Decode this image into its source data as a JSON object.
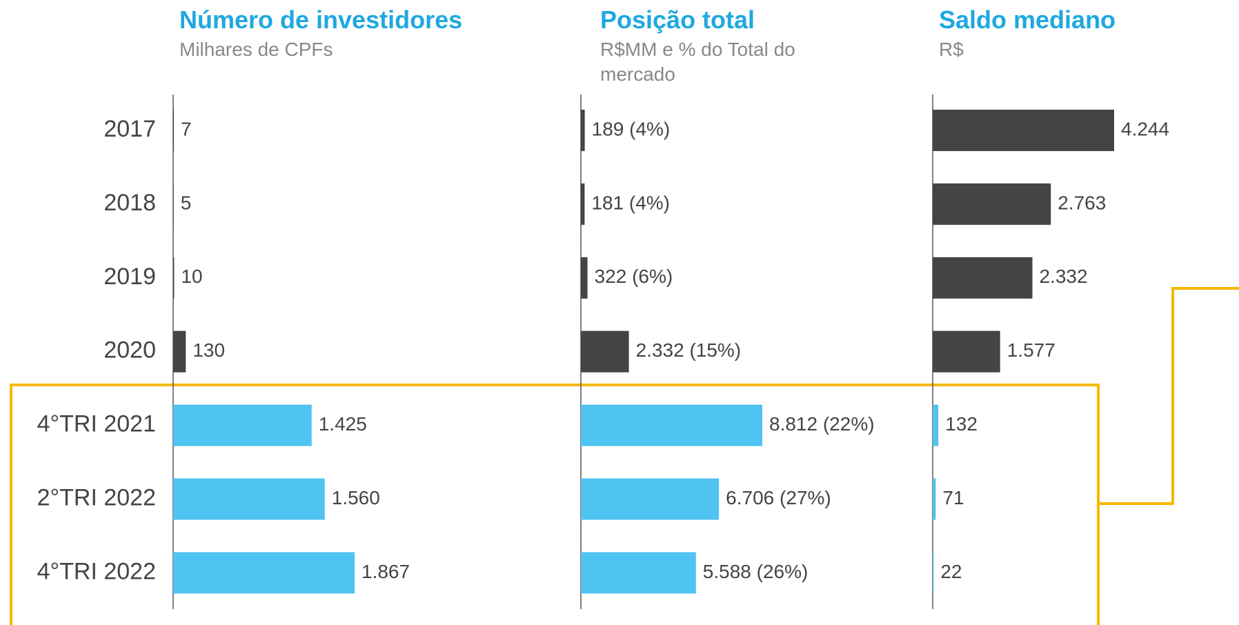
{
  "chart_data": [
    {
      "type": "bar",
      "title": "Número de investidores",
      "subtitle": "Milhares de CPFs",
      "categories": [
        "2017",
        "2018",
        "2019",
        "2020",
        "4°TRI 2021",
        "2°TRI 2022",
        "4°TRI 2022"
      ],
      "values": [
        7,
        5,
        10,
        130,
        1425,
        1560,
        1867
      ],
      "value_labels": [
        "7",
        "5",
        "10",
        "130",
        "1.425",
        "1.560",
        "1.867"
      ],
      "colors": [
        "#444444",
        "#444444",
        "#444444",
        "#444444",
        "#4fc3f1",
        "#4fc3f1",
        "#4fc3f1"
      ],
      "xlim": [
        0,
        1867
      ]
    },
    {
      "type": "bar",
      "title": "Posição total",
      "subtitle": "R$MM e % do Total do mercado",
      "values": [
        189,
        181,
        322,
        2332,
        8812,
        6706,
        5588
      ],
      "value_labels": [
        "189 (4%)",
        "181 (4%)",
        "322 (6%)",
        "2.332 (15%)",
        "8.812 (22%)",
        "6.706 (27%)",
        "5.588 (26%)"
      ],
      "colors": [
        "#444444",
        "#444444",
        "#444444",
        "#444444",
        "#4fc3f1",
        "#4fc3f1",
        "#4fc3f1"
      ],
      "xlim": [
        0,
        8812
      ]
    },
    {
      "type": "bar",
      "title": "Saldo mediano",
      "subtitle": "R$",
      "values": [
        4244,
        2763,
        2332,
        1577,
        132,
        71,
        22
      ],
      "value_labels": [
        "4.244",
        "2.763",
        "2.332",
        "1.577",
        "132",
        "71",
        "22"
      ],
      "colors": [
        "#444444",
        "#444444",
        "#444444",
        "#444444",
        "#4fc3f1",
        "#4fc3f1",
        "#4fc3f1"
      ],
      "xlim": [
        0,
        4244
      ]
    }
  ]
}
